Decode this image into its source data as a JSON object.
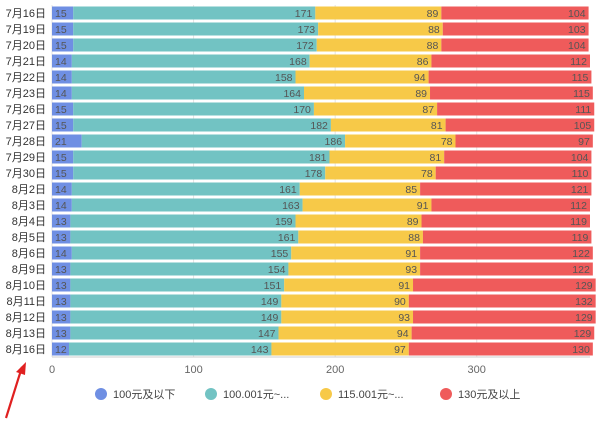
{
  "chart_data": {
    "type": "bar",
    "orientation": "horizontal",
    "stacked": true,
    "categories": [
      "7月16日",
      "7月19日",
      "7月20日",
      "7月21日",
      "7月22日",
      "7月23日",
      "7月26日",
      "7月27日",
      "7月28日",
      "7月29日",
      "7月30日",
      "8月2日",
      "8月3日",
      "8月4日",
      "8月5日",
      "8月6日",
      "8月9日",
      "8月10日",
      "8月11日",
      "8月12日",
      "8月13日",
      "8月16日"
    ],
    "series": [
      {
        "name": "100元及以下",
        "color": "#6f8fe3",
        "values": [
          15,
          15,
          15,
          14,
          14,
          14,
          15,
          15,
          21,
          15,
          15,
          14,
          14,
          13,
          13,
          14,
          13,
          13,
          13,
          13,
          13,
          12
        ]
      },
      {
        "name": "100.001元~...",
        "color": "#72c3c3",
        "values": [
          171,
          173,
          172,
          168,
          158,
          164,
          170,
          182,
          186,
          181,
          178,
          161,
          163,
          159,
          161,
          155,
          154,
          151,
          149,
          149,
          147,
          143
        ]
      },
      {
        "name": "115.001元~...",
        "color": "#f7c948",
        "values": [
          89,
          88,
          88,
          86,
          94,
          89,
          87,
          81,
          78,
          81,
          78,
          85,
          91,
          89,
          88,
          91,
          93,
          91,
          90,
          93,
          94,
          97
        ]
      },
      {
        "name": "130元及以上",
        "color": "#ef5b5b",
        "values": [
          104,
          103,
          104,
          112,
          115,
          115,
          111,
          105,
          97,
          104,
          110,
          121,
          112,
          119,
          119,
          122,
          122,
          129,
          132,
          129,
          129,
          130
        ]
      }
    ],
    "xlim": [
      0,
      380
    ],
    "xticks": [
      0,
      100,
      200,
      300
    ],
    "grid": true,
    "legend_position": "bottom"
  }
}
